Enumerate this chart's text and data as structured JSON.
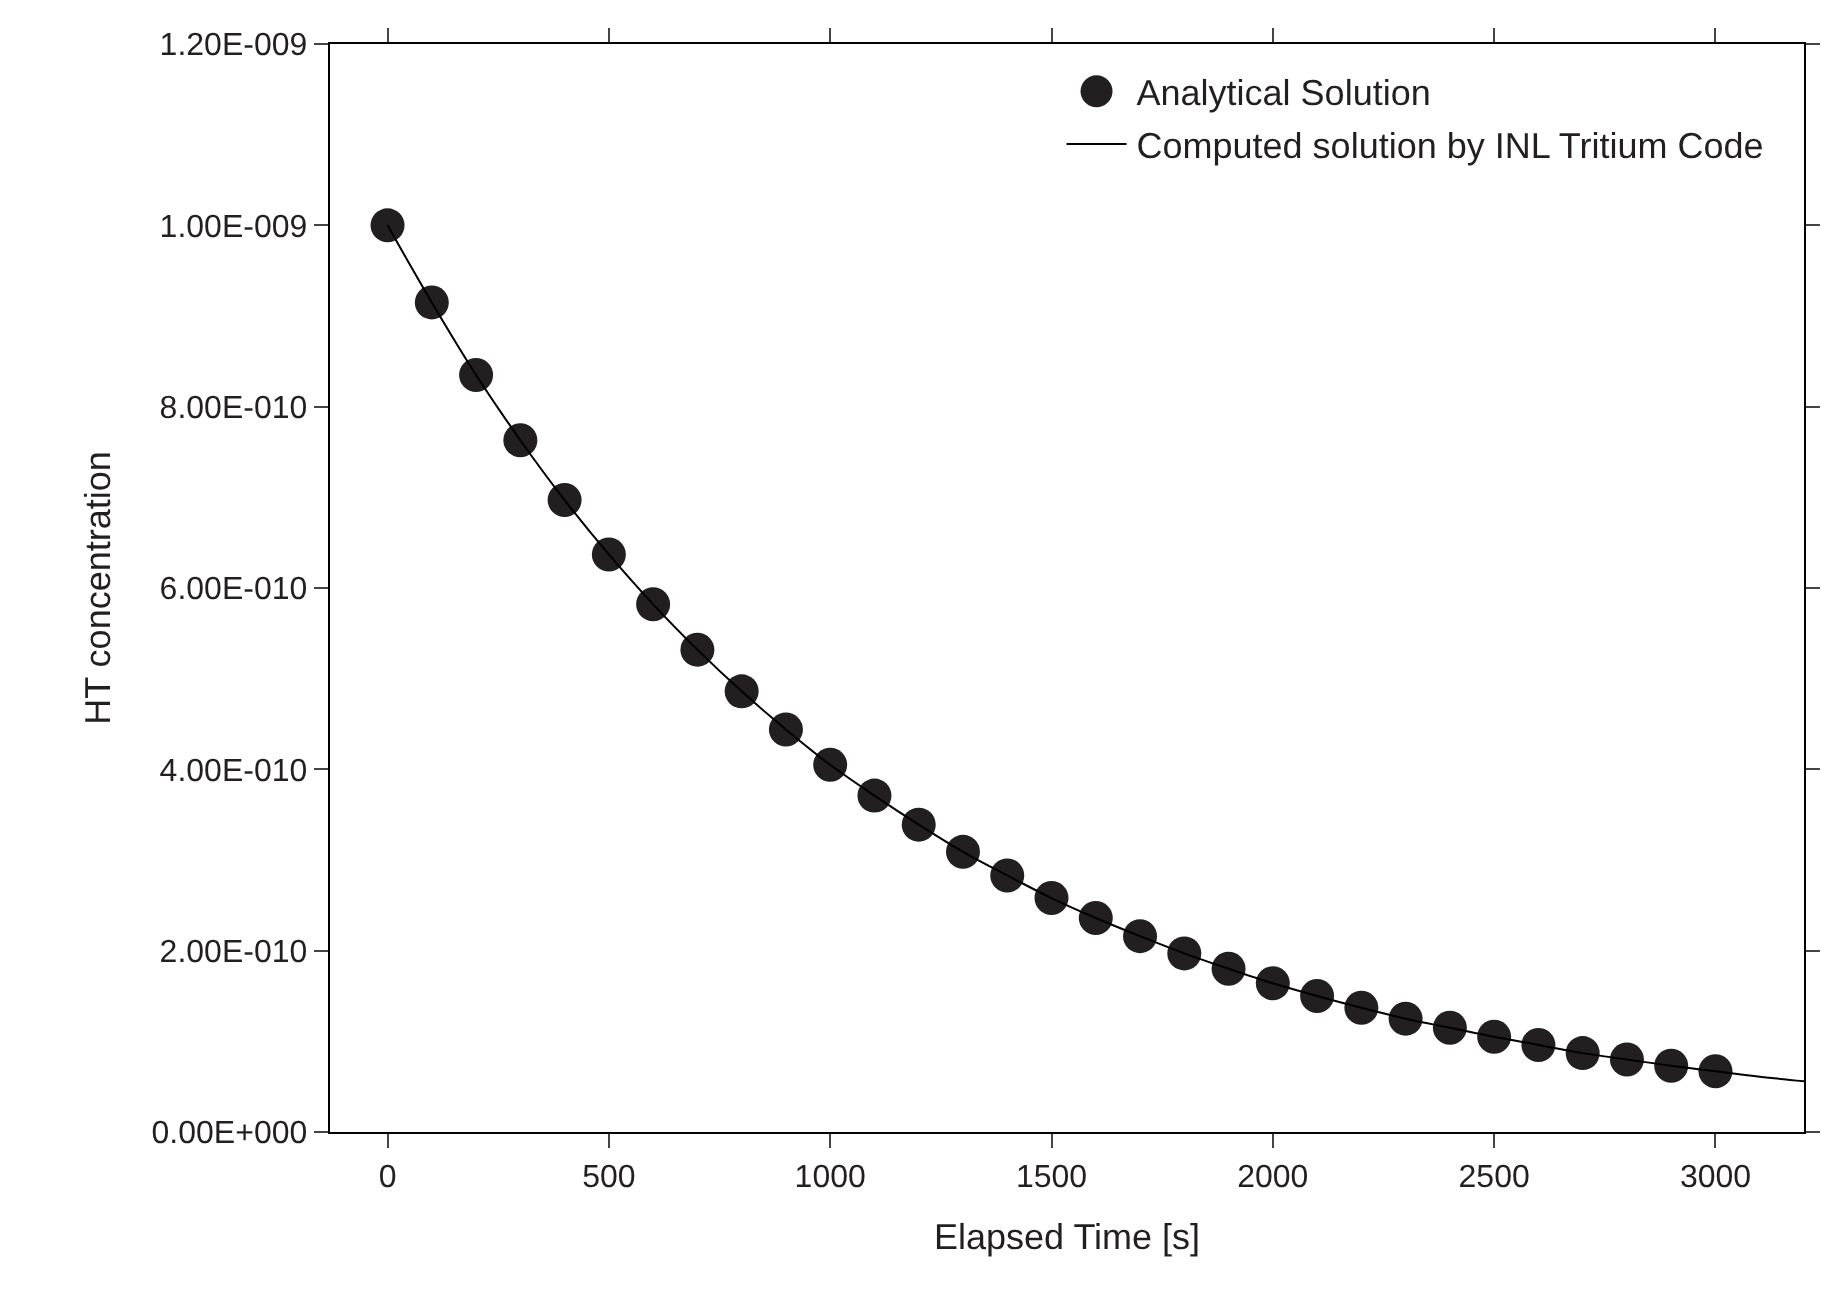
{
  "chart_data": {
    "type": "scatter",
    "xlabel": "Elapsed Time [s]",
    "ylabel": "HT concentration",
    "xlim": [
      -130,
      3200
    ],
    "xticks": [
      0,
      500,
      1000,
      1500,
      2000,
      2500,
      3000
    ],
    "ylim": [
      0,
      1.2e-09
    ],
    "yticks": [
      {
        "value": 0,
        "label": "0.00E+000"
      },
      {
        "value": 2e-10,
        "label": "2.00E-010"
      },
      {
        "value": 4e-10,
        "label": "4.00E-010"
      },
      {
        "value": 6e-10,
        "label": "6.00E-010"
      },
      {
        "value": 8e-10,
        "label": "8.00E-010"
      },
      {
        "value": 1e-09,
        "label": "1.00E-009"
      },
      {
        "value": 1.2e-09,
        "label": "1.20E-009"
      }
    ],
    "legend": "top right",
    "series": [
      {
        "name": "Analytical Solution",
        "marker": "circle",
        "color": "#231f20",
        "x": [
          0,
          100,
          200,
          300,
          400,
          500,
          600,
          700,
          800,
          900,
          1000,
          1100,
          1200,
          1300,
          1400,
          1500,
          1600,
          1700,
          1800,
          1900,
          2000,
          2100,
          2200,
          2300,
          2400,
          2500,
          2600,
          2700,
          2800,
          2900,
          3000
        ],
        "values": [
          1e-09,
          9.15e-10,
          8.35e-10,
          7.63e-10,
          6.97e-10,
          6.37e-10,
          5.82e-10,
          5.32e-10,
          4.86e-10,
          4.44e-10,
          4.05e-10,
          3.71e-10,
          3.39e-10,
          3.09e-10,
          2.83e-10,
          2.58e-10,
          2.36e-10,
          2.16e-10,
          1.97e-10,
          1.8e-10,
          1.64e-10,
          1.5e-10,
          1.37e-10,
          1.25e-10,
          1.15e-10,
          1.05e-10,
          9.6e-11,
          8.7e-11,
          8e-11,
          7.3e-11,
          6.7e-11
        ]
      },
      {
        "name": "Computed solution by INL Tritium Code",
        "type": "line",
        "marker": "none",
        "line_style": "solid",
        "color": "#000000",
        "x": [
          0,
          100,
          200,
          300,
          400,
          500,
          600,
          700,
          800,
          900,
          1000,
          1100,
          1200,
          1300,
          1400,
          1500,
          1600,
          1700,
          1800,
          1900,
          2000,
          2100,
          2200,
          2300,
          2400,
          2500,
          2600,
          2700,
          2800,
          2900,
          3000,
          3100,
          3200
        ],
        "values": [
          1e-09,
          9.15e-10,
          8.35e-10,
          7.63e-10,
          6.97e-10,
          6.37e-10,
          5.82e-10,
          5.32e-10,
          4.86e-10,
          4.44e-10,
          4.05e-10,
          3.71e-10,
          3.39e-10,
          3.09e-10,
          2.83e-10,
          2.58e-10,
          2.36e-10,
          2.16e-10,
          1.97e-10,
          1.8e-10,
          1.64e-10,
          1.5e-10,
          1.37e-10,
          1.25e-10,
          1.15e-10,
          1.05e-10,
          9.6e-11,
          8.7e-11,
          8e-11,
          7.3e-11,
          6.7e-11,
          6.1e-11,
          5.6e-11
        ]
      }
    ]
  }
}
